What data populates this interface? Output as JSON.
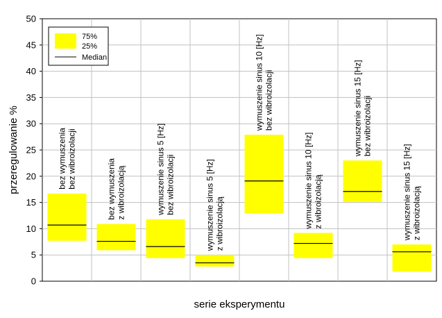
{
  "chart_data": {
    "type": "box",
    "xlabel": "serie eksperymentu",
    "ylabel": "przeregulowanie %",
    "ylim": [
      0,
      50
    ],
    "yticks": [
      0,
      5,
      10,
      15,
      20,
      25,
      30,
      35,
      40,
      45,
      50
    ],
    "grid": true,
    "legend": {
      "placement": "top-left",
      "box_label_top": "75%",
      "box_label_bottom": "25%",
      "median_label": "Median"
    },
    "colors": {
      "box": "#ffff00",
      "median": "#000000",
      "grid": "#c0c0c0"
    },
    "series": [
      {
        "label_lines": [
          "bez wymuszenia",
          "bez wibroizolacji"
        ],
        "q1": 7.7,
        "median": 10.7,
        "q3": 16.7
      },
      {
        "label_lines": [
          "bez wymuszenia",
          "z wibroizolacją"
        ],
        "q1": 5.9,
        "median": 7.6,
        "q3": 10.9
      },
      {
        "label_lines": [
          "wymuszenie sinus 5 [Hz]",
          "bez wibroizolacji"
        ],
        "q1": 4.4,
        "median": 6.6,
        "q3": 11.8
      },
      {
        "label_lines": [
          "wymuszenie sinus 5 [Hz]",
          "z wibroizolacją"
        ],
        "q1": 2.8,
        "median": 3.5,
        "q3": 5.0
      },
      {
        "label_lines": [
          "wymuszenie sinus 10 [Hz]",
          "bez wibroizolacji"
        ],
        "q1": 12.9,
        "median": 19.1,
        "q3": 27.9
      },
      {
        "label_lines": [
          "wymuszenie sinus 10 [Hz]",
          "z wibroizolacją"
        ],
        "q1": 4.4,
        "median": 7.2,
        "q3": 9.2
      },
      {
        "label_lines": [
          "wymuszenie sinus 15 [Hz]",
          "bez wibroizolacji"
        ],
        "q1": 15.1,
        "median": 17.1,
        "q3": 23.0
      },
      {
        "label_lines": [
          "wymuszenie sinus 15 [Hz]",
          "z wibroizolacją"
        ],
        "q1": 1.8,
        "median": 5.6,
        "q3": 7.0
      }
    ]
  }
}
